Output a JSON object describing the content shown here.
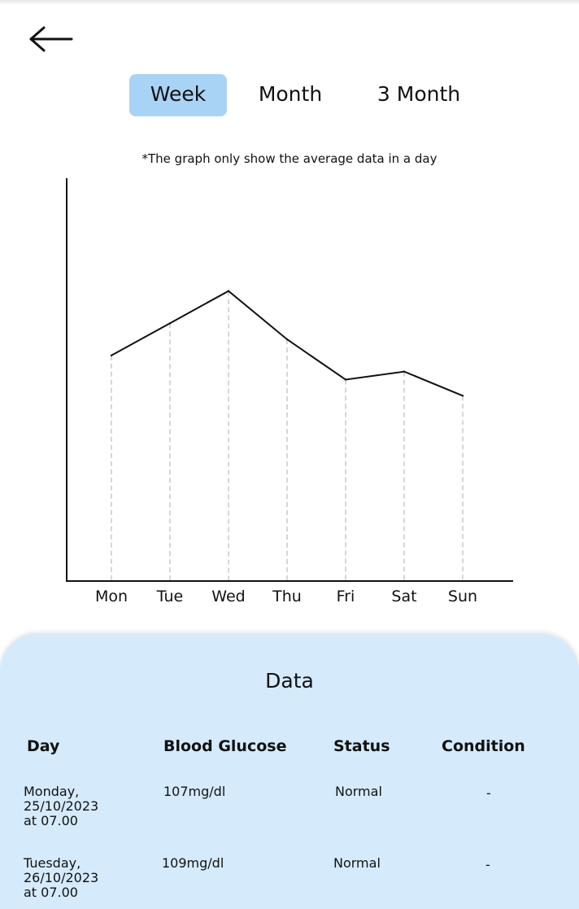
{
  "header": {
    "back_icon": "arrow-left-icon"
  },
  "tabs": [
    {
      "label": "Week",
      "active": true
    },
    {
      "label": "Month",
      "active": false
    },
    {
      "label": "3 Month",
      "active": false
    }
  ],
  "note": "*The graph only show the average data in a day",
  "chart_data": {
    "type": "line",
    "categories": [
      "Mon",
      "Tue",
      "Wed",
      "Thu",
      "Fri",
      "Sat",
      "Sun"
    ],
    "values": [
      107,
      109,
      111,
      108,
      105.5,
      106,
      104.5
    ],
    "ylim": [
      93,
      118
    ],
    "grid": "vertical dashed drop lines",
    "title": "",
    "xlabel": "",
    "ylabel": ""
  },
  "data_panel": {
    "title": "Data",
    "headers": [
      "Day",
      "Blood Glucose",
      "Status",
      "Condition"
    ],
    "rows": [
      {
        "day": "Monday,\n25/10/2023\nat 07.00",
        "glucose": "107mg/dl",
        "status": "Normal",
        "condition": "-"
      },
      {
        "day": "Tuesday,\n26/10/2023\nat 07.00",
        "glucose": "109mg/dl",
        "status": "Normal",
        "condition": "-"
      }
    ]
  },
  "colors": {
    "accent_tab": "#a9d3f5",
    "panel_bg": "#d5ebfc",
    "line": "#111111",
    "grid": "#c8c8c8"
  }
}
